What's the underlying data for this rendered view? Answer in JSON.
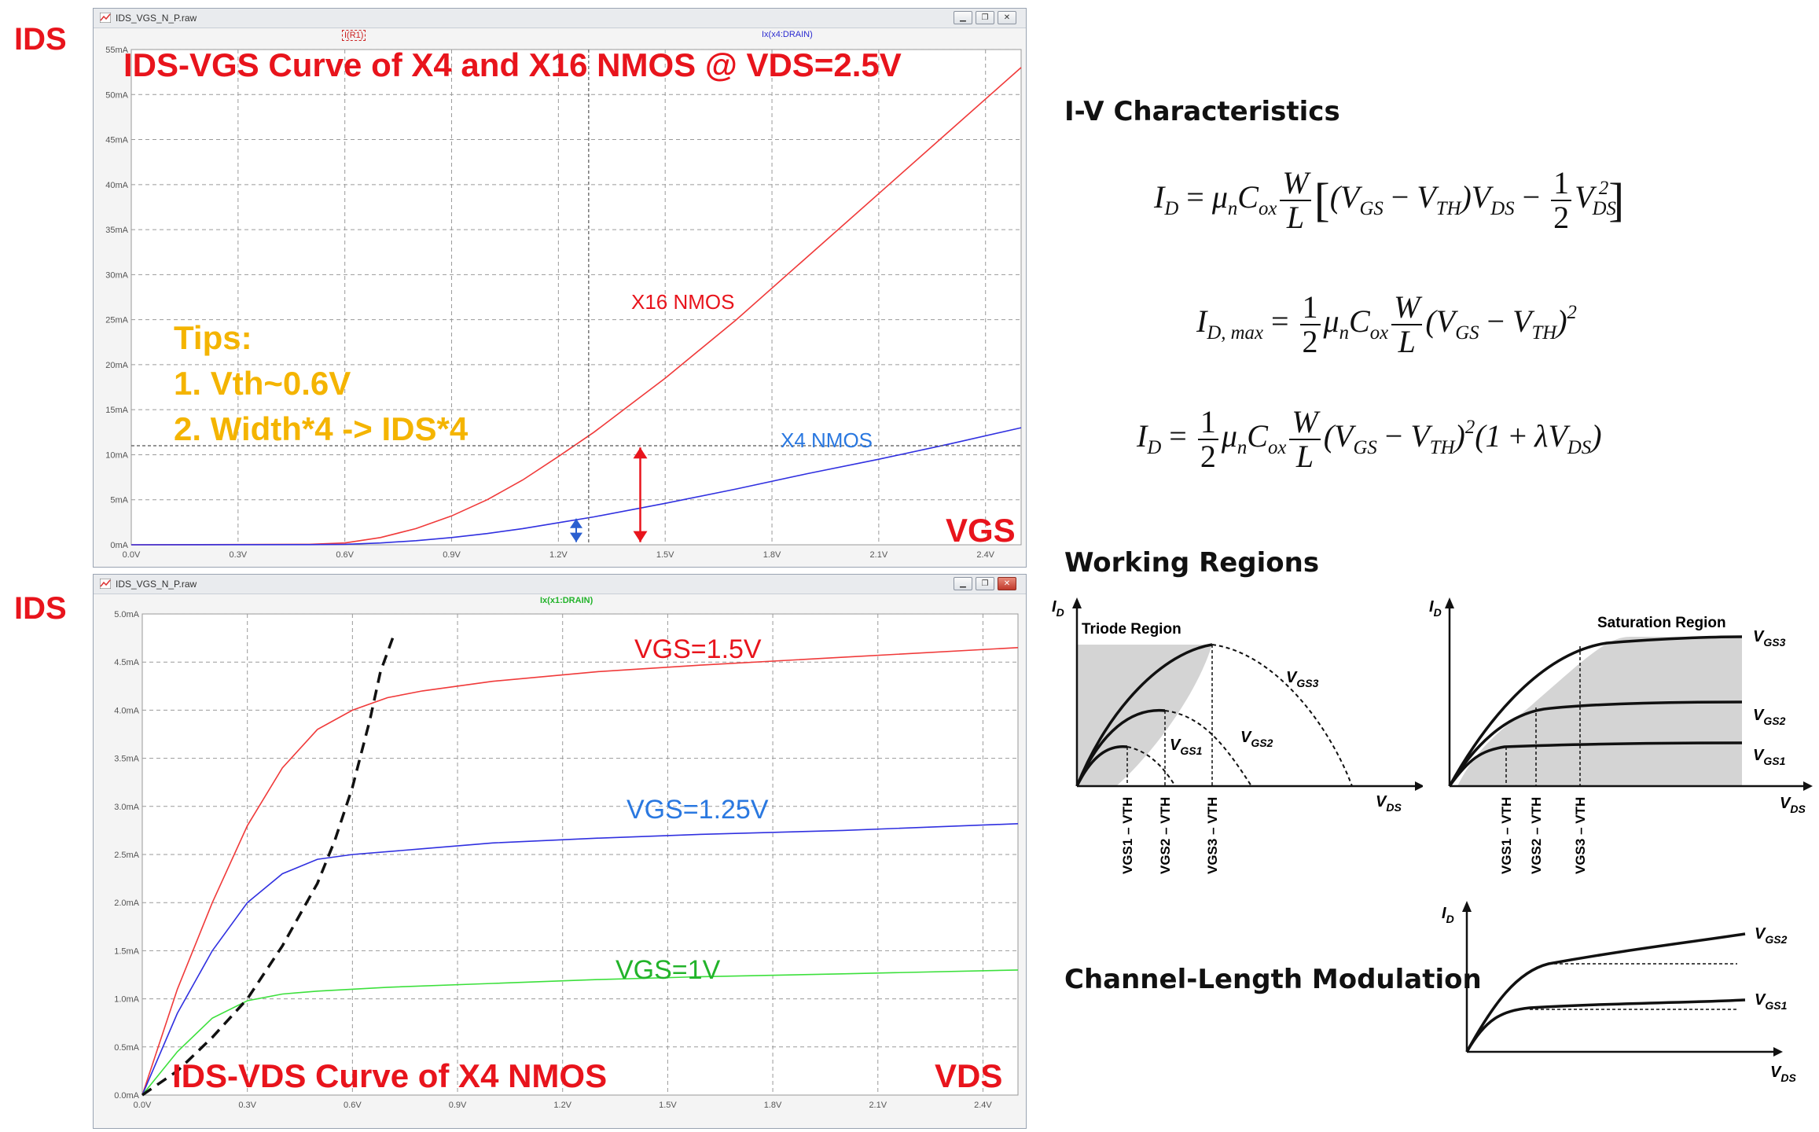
{
  "labels": {
    "ids_top": "IDS",
    "ids_bottom": "IDS"
  },
  "colors": {
    "red": "#e8141c",
    "blue": "#2a78e0",
    "green": "#22b32a",
    "orange": "#f4b400",
    "curve_red": "#f03a3a",
    "curve_blue": "#3030e0",
    "curve_green": "#3ce03c"
  },
  "window1": {
    "title": "IDS_VGS_N_P.raw",
    "trace_left": "I(R1)",
    "trace_right": "Ix(x4:DRAIN)",
    "chart_title": "IDS-VGS Curve of X4 and X16 NMOS @ VDS=2.5V",
    "x_axis_name": "VGS",
    "series_label_x16": "X16 NMOS",
    "series_label_x4": "X4 NMOS",
    "tips": {
      "title": "Tips:",
      "line1": "1. Vth~0.6V",
      "line2": "2. Width*4 -> IDS*4"
    }
  },
  "window2": {
    "title": "IDS_VGS_N_P.raw",
    "trace": "Ix(x1:DRAIN)",
    "chart_title": "IDS-VDS Curve of X4 NMOS",
    "x_axis_name": "VDS",
    "series_label_15": "VGS=1.5V",
    "series_label_125": "VGS=1.25V",
    "series_label_1": "VGS=1V"
  },
  "chart_data": [
    {
      "type": "line",
      "title": "IDS-VGS Curve of X4 and X16 NMOS @ VDS=2.5V",
      "xlabel": "VGS",
      "ylabel": "IDS",
      "xlim": [
        0,
        2.5
      ],
      "ylim": [
        0,
        55
      ],
      "x_ticks": [
        "0.0V",
        "0.3V",
        "0.6V",
        "0.9V",
        "1.2V",
        "1.5V",
        "1.8V",
        "2.1V",
        "2.4V"
      ],
      "y_ticks": [
        "0mA",
        "5mA",
        "10mA",
        "15mA",
        "20mA",
        "25mA",
        "30mA",
        "35mA",
        "40mA",
        "45mA",
        "50mA",
        "55mA"
      ],
      "grid": true,
      "series": [
        {
          "name": "X16 NMOS",
          "x": [
            0,
            0.5,
            0.6,
            0.7,
            0.8,
            0.9,
            1.0,
            1.1,
            1.2,
            1.3,
            1.5,
            1.7,
            1.9,
            2.1,
            2.3,
            2.5
          ],
          "y": [
            0,
            0.05,
            0.2,
            0.8,
            1.8,
            3.2,
            5.0,
            7.2,
            9.8,
            12.5,
            18.5,
            25,
            32,
            39,
            46,
            53
          ]
        },
        {
          "name": "X4 NMOS",
          "x": [
            0,
            0.5,
            0.6,
            0.7,
            0.8,
            0.9,
            1.0,
            1.1,
            1.2,
            1.3,
            1.5,
            1.7,
            1.9,
            2.1,
            2.3,
            2.5
          ],
          "y": [
            0,
            0.02,
            0.05,
            0.2,
            0.45,
            0.8,
            1.25,
            1.8,
            2.45,
            3.1,
            4.6,
            6.2,
            7.9,
            9.5,
            11.2,
            13
          ]
        }
      ]
    },
    {
      "type": "line",
      "title": "IDS-VDS Curve of X4 NMOS",
      "xlabel": "VDS",
      "ylabel": "IDS",
      "xlim": [
        0,
        2.5
      ],
      "ylim": [
        0,
        5.0
      ],
      "x_ticks": [
        "0.0V",
        "0.3V",
        "0.6V",
        "0.9V",
        "1.2V",
        "1.5V",
        "1.8V",
        "2.1V",
        "2.4V"
      ],
      "y_ticks": [
        "0.0mA",
        "0.5mA",
        "1.0mA",
        "1.5mA",
        "2.0mA",
        "2.5mA",
        "3.0mA",
        "3.5mA",
        "4.0mA",
        "4.5mA",
        "5.0mA"
      ],
      "grid": true,
      "series": [
        {
          "name": "VGS=1.5V",
          "x": [
            0,
            0.1,
            0.2,
            0.3,
            0.4,
            0.5,
            0.6,
            0.7,
            0.8,
            1.0,
            1.3,
            1.6,
            2.0,
            2.5
          ],
          "y": [
            0,
            1.1,
            2.0,
            2.8,
            3.4,
            3.8,
            4.0,
            4.13,
            4.2,
            4.3,
            4.4,
            4.47,
            4.55,
            4.65
          ]
        },
        {
          "name": "VGS=1.25V",
          "x": [
            0,
            0.1,
            0.2,
            0.3,
            0.4,
            0.5,
            0.6,
            0.8,
            1.0,
            1.3,
            1.6,
            2.0,
            2.5
          ],
          "y": [
            0,
            0.85,
            1.5,
            2.0,
            2.3,
            2.45,
            2.5,
            2.56,
            2.62,
            2.67,
            2.71,
            2.75,
            2.82
          ]
        },
        {
          "name": "VGS=1V",
          "x": [
            0,
            0.1,
            0.2,
            0.3,
            0.4,
            0.5,
            0.7,
            1.0,
            1.3,
            1.6,
            2.0,
            2.5
          ],
          "y": [
            0,
            0.45,
            0.8,
            0.98,
            1.05,
            1.08,
            1.12,
            1.16,
            1.2,
            1.23,
            1.26,
            1.3
          ]
        }
      ]
    }
  ],
  "right": {
    "iv_heading": "I-V Characteristics",
    "regions_heading": "Working Regions",
    "clm_heading": "Channel-Length Modulation",
    "triode_label": "Triode Region",
    "saturation_label": "Saturation Region",
    "id_axis": "I",
    "id_sub": "D",
    "vds_axis": "V",
    "vds_sub": "DS",
    "vgs1": "GS1",
    "vgs2": "GS2",
    "vgs3": "GS3",
    "tick1": "VGS1 – VTH",
    "tick2": "VGS2 – VTH",
    "tick3": "VGS3 – VTH"
  }
}
